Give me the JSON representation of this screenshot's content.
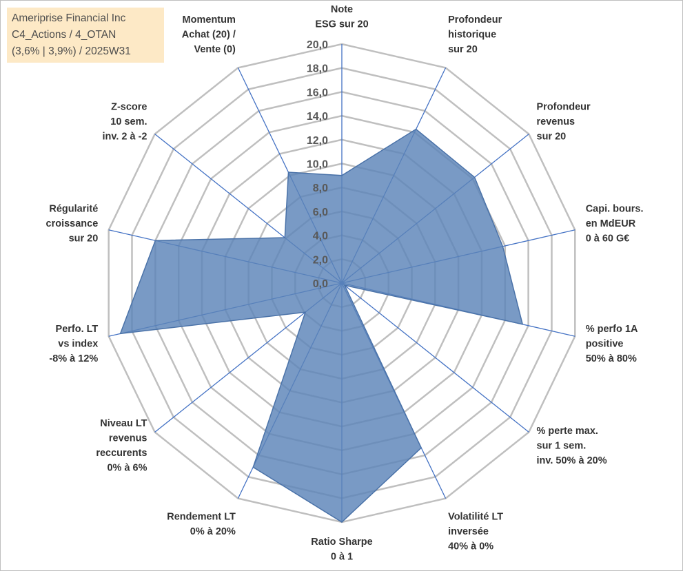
{
  "title_lines": [
    "Ameriprise Financial Inc",
    "C4_Actions / 4_OTAN",
    "(3,6% | 3,9%) / 2025W31"
  ],
  "chart_data": {
    "type": "radar",
    "rmin": 0,
    "rmax": 20,
    "tick_step": 2,
    "tick_labels": [
      "0,0",
      "2,0",
      "4,0",
      "6,0",
      "8,0",
      "10,0",
      "12,0",
      "14,0",
      "16,0",
      "18,0",
      "20,0"
    ],
    "categories": [
      [
        "Note",
        "ESG sur 20"
      ],
      [
        "Profondeur",
        "historique",
        "sur 20"
      ],
      [
        "Profondeur",
        "revenus",
        "sur 20"
      ],
      [
        "Capi. bours.",
        "en MdEUR",
        "0 à 60 G€"
      ],
      [
        "% perfo 1A",
        "positive",
        "50% à 80%"
      ],
      [
        "% perte max.",
        "sur 1 sem.",
        "inv. 50% à 20%"
      ],
      [
        "Volatilité LT",
        "inversée",
        "40% à 0%"
      ],
      [
        "Ratio Sharpe",
        "0 à 1"
      ],
      [
        "Rendement LT",
        "0% à 20%"
      ],
      [
        "Niveau LT",
        "revenus",
        "reccurents",
        "0% à 6%"
      ],
      [
        "Perfo. LT",
        "vs index",
        "-8% à 12%"
      ],
      [
        "Régularité",
        "croissance",
        "sur 20"
      ],
      [
        "Z-score",
        "10 sem.",
        "inv. 2 à -2"
      ],
      [
        "Momentum",
        "Achat (20) /",
        "Vente (0)"
      ]
    ],
    "values": [
      9.0,
      14.3,
      14.2,
      13.8,
      15.5,
      0.3,
      15.3,
      20.0,
      17.1,
      3.9,
      19.0,
      16.0,
      6.1,
      10.3
    ],
    "colors": {
      "fill": "#5b84b8",
      "line": "#4472c4",
      "grid": "#bfbfbf"
    }
  }
}
